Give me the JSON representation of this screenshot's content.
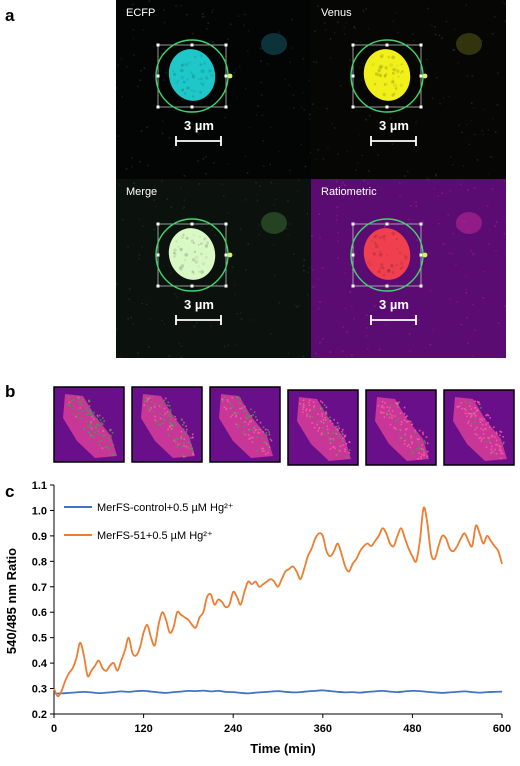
{
  "figure": {
    "panel_labels": {
      "a": "a",
      "b": "b",
      "c": "c"
    },
    "panel_a": {
      "tiles": [
        {
          "label": "ECFP",
          "cell_color": "#1fc8c8",
          "bg": "#030505"
        },
        {
          "label": "Venus",
          "cell_color": "#f2f01a",
          "bg": "#060604"
        },
        {
          "label": "Merge",
          "cell_color": "#d8f8c4",
          "bg": "#0b120d"
        },
        {
          "label": "Ratiometric",
          "cell_color": "#f04050",
          "bg": "#5a0c72"
        }
      ],
      "scale_bar_label": "3 µm",
      "roi_circle_color": "#3dd66c"
    },
    "panel_b": {
      "frame_count": 6,
      "green_fraction": [
        0.85,
        0.65,
        0.45,
        0.3,
        0.2,
        0.12
      ],
      "colors": {
        "background": "#6a0f8a",
        "green": "#4a9a4a",
        "magenta": "#e0409a"
      }
    }
  },
  "chart_data": {
    "type": "line",
    "title": "",
    "xlabel": "Time (min)",
    "ylabel": "540/485 nm Ratio",
    "xlim": [
      0,
      600
    ],
    "ylim": [
      0.2,
      1.1
    ],
    "xticks": [
      0,
      120,
      240,
      360,
      480,
      600
    ],
    "yticks": [
      0.2,
      0.3,
      0.4,
      0.5,
      0.6,
      0.7,
      0.8,
      0.9,
      1.0,
      1.1
    ],
    "xtick_labels": [
      "0",
      "120",
      "240",
      "360",
      "480",
      "600"
    ],
    "ytick_labels": [
      "0.2",
      "0.3",
      "0.4",
      "0.5",
      "0.6",
      "0.7",
      "0.8",
      "0.9",
      "1.0",
      "1.1"
    ],
    "grid": false,
    "legend_position": "top-left",
    "series": [
      {
        "name": "MerFS-control+0.5 µM Hg²⁺",
        "color": "#4472c4",
        "x": [
          0,
          10,
          20,
          30,
          40,
          50,
          60,
          70,
          80,
          90,
          100,
          110,
          120,
          130,
          140,
          150,
          160,
          170,
          180,
          190,
          200,
          210,
          220,
          230,
          240,
          250,
          260,
          270,
          280,
          290,
          300,
          310,
          320,
          330,
          340,
          350,
          360,
          370,
          380,
          390,
          400,
          410,
          420,
          430,
          440,
          450,
          460,
          470,
          480,
          490,
          500,
          510,
          520,
          530,
          540,
          550,
          560,
          570,
          580,
          590,
          600
        ],
        "y": [
          0.28,
          0.281,
          0.283,
          0.285,
          0.287,
          0.285,
          0.282,
          0.284,
          0.286,
          0.289,
          0.287,
          0.29,
          0.291,
          0.288,
          0.285,
          0.283,
          0.286,
          0.288,
          0.291,
          0.29,
          0.292,
          0.289,
          0.291,
          0.287,
          0.286,
          0.283,
          0.281,
          0.284,
          0.286,
          0.288,
          0.29,
          0.287,
          0.285,
          0.286,
          0.289,
          0.291,
          0.293,
          0.29,
          0.287,
          0.285,
          0.286,
          0.284,
          0.287,
          0.289,
          0.291,
          0.288,
          0.286,
          0.289,
          0.291,
          0.29,
          0.287,
          0.285,
          0.283,
          0.285,
          0.287,
          0.289,
          0.286,
          0.284,
          0.286,
          0.287,
          0.288
        ]
      },
      {
        "name": "MerFS-51+0.5 µM Hg²⁺",
        "color": "#ed7d31",
        "x": [
          0,
          5,
          10,
          15,
          20,
          25,
          30,
          35,
          40,
          45,
          50,
          55,
          60,
          65,
          70,
          75,
          80,
          85,
          90,
          95,
          100,
          105,
          110,
          115,
          120,
          125,
          130,
          135,
          140,
          145,
          150,
          155,
          160,
          165,
          170,
          175,
          180,
          185,
          190,
          195,
          200,
          205,
          210,
          215,
          220,
          225,
          230,
          235,
          240,
          245,
          250,
          255,
          260,
          265,
          270,
          275,
          280,
          285,
          290,
          295,
          300,
          305,
          310,
          315,
          320,
          325,
          330,
          335,
          340,
          345,
          350,
          355,
          360,
          365,
          370,
          375,
          380,
          385,
          390,
          395,
          400,
          405,
          410,
          415,
          420,
          425,
          430,
          435,
          440,
          445,
          450,
          455,
          460,
          465,
          470,
          475,
          480,
          485,
          490,
          495,
          500,
          505,
          510,
          515,
          520,
          525,
          530,
          535,
          540,
          545,
          550,
          555,
          560,
          565,
          570,
          575,
          580,
          585,
          590,
          595,
          600
        ],
        "y": [
          0.3,
          0.27,
          0.29,
          0.33,
          0.36,
          0.38,
          0.42,
          0.48,
          0.43,
          0.35,
          0.37,
          0.39,
          0.41,
          0.38,
          0.37,
          0.39,
          0.4,
          0.37,
          0.41,
          0.45,
          0.5,
          0.44,
          0.43,
          0.46,
          0.52,
          0.55,
          0.5,
          0.47,
          0.55,
          0.6,
          0.57,
          0.52,
          0.54,
          0.6,
          0.59,
          0.58,
          0.57,
          0.55,
          0.54,
          0.58,
          0.6,
          0.66,
          0.67,
          0.63,
          0.65,
          0.64,
          0.62,
          0.63,
          0.68,
          0.66,
          0.63,
          0.68,
          0.72,
          0.71,
          0.72,
          0.7,
          0.71,
          0.72,
          0.73,
          0.72,
          0.7,
          0.73,
          0.76,
          0.77,
          0.78,
          0.76,
          0.73,
          0.77,
          0.82,
          0.85,
          0.89,
          0.91,
          0.9,
          0.84,
          0.82,
          0.84,
          0.87,
          0.83,
          0.78,
          0.76,
          0.79,
          0.81,
          0.84,
          0.86,
          0.87,
          0.86,
          0.88,
          0.9,
          0.93,
          0.91,
          0.87,
          0.86,
          0.9,
          0.93,
          0.89,
          0.85,
          0.82,
          0.8,
          0.88,
          1.01,
          0.95,
          0.83,
          0.81,
          0.86,
          0.9,
          0.89,
          0.85,
          0.84,
          0.86,
          0.89,
          0.91,
          0.88,
          0.86,
          0.94,
          0.91,
          0.87,
          0.9,
          0.88,
          0.86,
          0.84,
          0.79
        ]
      }
    ]
  }
}
